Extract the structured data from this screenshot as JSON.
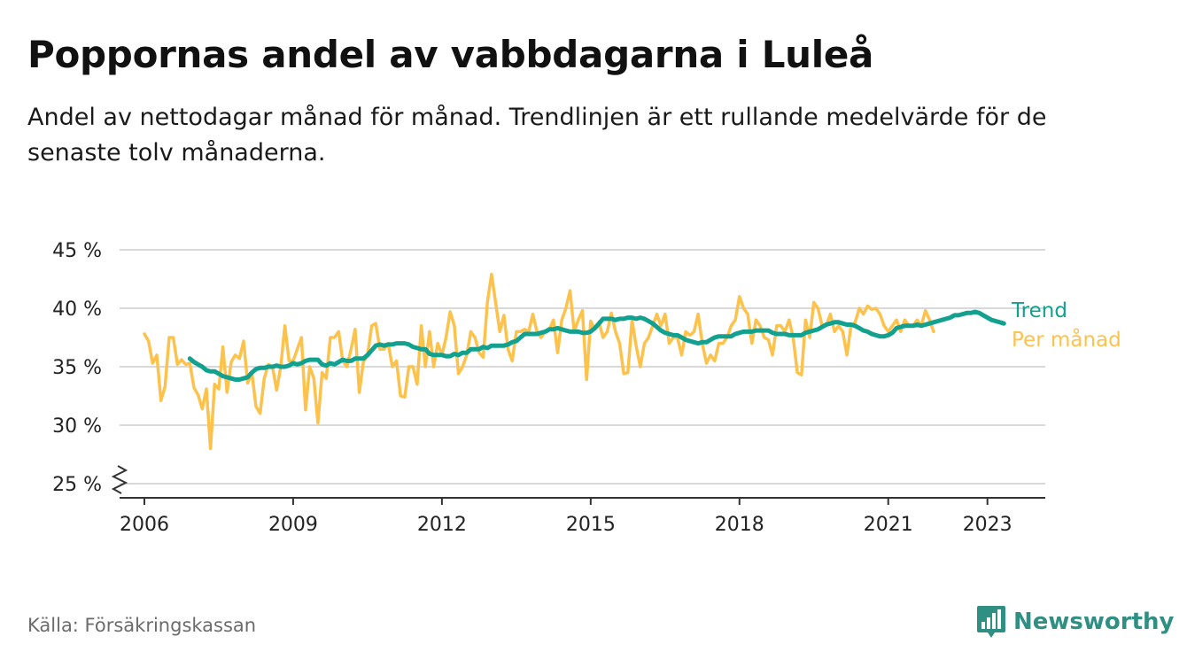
{
  "header": {
    "title": "Poppornas andel av vabbdagarna i Luleå",
    "subtitle": "Andel av nettodagar månad för månad. Trendlinjen är ett rullande medelvärde för de senaste tolv månaderna."
  },
  "footer": {
    "source": "Källa: Försäkringskassan",
    "brand": "Newsworthy",
    "brand_icon": "bar-chart-speech-bubble-icon"
  },
  "colors": {
    "trend": "#12a08f",
    "monthly": "#fcc24c",
    "grid": "#d9d9d9",
    "axis": "#333333",
    "brand": "#2f8f83"
  },
  "chart_data": {
    "type": "line",
    "x_axis": {
      "type": "time",
      "range": [
        "2005-07",
        "2024-03"
      ],
      "ticks": [
        "2006",
        "2009",
        "2012",
        "2015",
        "2018",
        "2021",
        "2023"
      ]
    },
    "y_axis": {
      "range": [
        25,
        45
      ],
      "ticks": [
        "25 %",
        "30 %",
        "35 %",
        "40 %",
        "45 %"
      ],
      "tick_values": [
        25,
        30,
        35,
        40,
        45
      ],
      "axis_break": true
    },
    "grid": true,
    "legend": "end-of-line labels",
    "series": [
      {
        "name": "Per månad",
        "start": "2006-01",
        "frequency": "monthly",
        "values": [
          37.8,
          37.2,
          35.3,
          36.0,
          32.1,
          33.3,
          37.5,
          37.5,
          35.2,
          35.6,
          35.2,
          35.3,
          33.2,
          32.6,
          31.4,
          33.1,
          28.0,
          33.5,
          33.1,
          36.7,
          32.8,
          35.4,
          36.0,
          35.7,
          37.2,
          33.6,
          34.5,
          31.6,
          31.0,
          34.0,
          35.2,
          35.0,
          33.0,
          35.0,
          38.5,
          35.5,
          35.5,
          36.5,
          37.5,
          31.3,
          35.0,
          34.0,
          30.2,
          34.5,
          34.0,
          37.5,
          37.5,
          38.0,
          35.5,
          35.0,
          36.5,
          38.2,
          32.8,
          35.4,
          36.0,
          38.5,
          38.7,
          36.5,
          36.5,
          37.0,
          35.0,
          35.5,
          32.5,
          32.4,
          35.0,
          35.0,
          33.5,
          38.5,
          35.0,
          38.0,
          35.0,
          37.0,
          36.0,
          37.5,
          39.7,
          38.5,
          34.4,
          35.0,
          36.0,
          38.0,
          37.5,
          36.2,
          35.8,
          40.5,
          42.9,
          40.5,
          38.0,
          39.4,
          36.5,
          35.5,
          38.0,
          38.0,
          38.2,
          38.0,
          39.5,
          38.0,
          37.5,
          38.0,
          38.2,
          39.0,
          36.2,
          39.0,
          40.0,
          41.5,
          38.0,
          39.0,
          39.8,
          33.9,
          38.9,
          38.2,
          38.8,
          37.5,
          38.0,
          39.6,
          38.0,
          37.0,
          34.4,
          34.5,
          39.0,
          36.8,
          35.0,
          37.0,
          37.5,
          38.5,
          39.5,
          38.5,
          39.5,
          37.0,
          37.5,
          37.5,
          36.0,
          38.0,
          37.7,
          38.0,
          39.5,
          37.0,
          35.3,
          36.0,
          35.5,
          37.0,
          37.0,
          37.5,
          38.5,
          39.0,
          41.0,
          40.0,
          39.5,
          37.0,
          39.0,
          38.5,
          37.5,
          37.3,
          36.0,
          38.5,
          38.5,
          38.0,
          39.0,
          37.5,
          34.5,
          34.3,
          39.0,
          37.5,
          40.5,
          40.0,
          38.5,
          38.5,
          39.5,
          38.0,
          38.5,
          38.0,
          36.0,
          38.5,
          38.8,
          40.0,
          39.5,
          40.2,
          39.9,
          40.0,
          39.5,
          38.5,
          38.0,
          38.5,
          39.0,
          38.0,
          39.0,
          38.5,
          38.5,
          39.0,
          38.5,
          39.8,
          39.0,
          38.0
        ],
        "color": "#fcc24c"
      },
      {
        "name": "Trend",
        "start": "2006-12",
        "frequency": "monthly",
        "values": [
          35.7,
          35.4,
          35.2,
          35.0,
          34.7,
          34.6,
          34.6,
          34.4,
          34.2,
          34.1,
          34.0,
          33.9,
          33.9,
          34.0,
          34.1,
          34.5,
          34.8,
          34.9,
          34.9,
          35.0,
          35.0,
          35.1,
          35.0,
          35.0,
          35.1,
          35.3,
          35.2,
          35.3,
          35.5,
          35.6,
          35.6,
          35.6,
          35.2,
          35.1,
          35.3,
          35.2,
          35.4,
          35.6,
          35.5,
          35.5,
          35.7,
          35.7,
          35.7,
          36.0,
          36.4,
          36.8,
          36.9,
          36.8,
          36.9,
          36.9,
          37.0,
          37.0,
          37.0,
          36.9,
          36.7,
          36.6,
          36.5,
          36.5,
          36.1,
          36.0,
          36.0,
          36.0,
          35.9,
          35.9,
          36.1,
          36.0,
          36.2,
          36.2,
          36.5,
          36.5,
          36.5,
          36.7,
          36.6,
          36.8,
          36.8,
          36.8,
          36.8,
          36.9,
          37.1,
          37.2,
          37.5,
          37.8,
          37.8,
          37.8,
          37.8,
          37.9,
          38.0,
          38.2,
          38.2,
          38.3,
          38.2,
          38.1,
          38.0,
          38.0,
          38.0,
          37.9,
          37.9,
          38.0,
          38.3,
          38.7,
          39.1,
          39.1,
          39.1,
          39.0,
          39.1,
          39.1,
          39.2,
          39.2,
          39.1,
          39.2,
          39.1,
          38.9,
          38.7,
          38.4,
          38.1,
          37.9,
          37.8,
          37.7,
          37.7,
          37.5,
          37.3,
          37.2,
          37.1,
          37.0,
          37.1,
          37.1,
          37.3,
          37.5,
          37.6,
          37.6,
          37.6,
          37.6,
          37.8,
          37.9,
          38.0,
          38.0,
          38.0,
          38.1,
          38.1,
          38.1,
          38.1,
          37.9,
          37.8,
          37.8,
          37.8,
          37.7,
          37.7,
          37.7,
          37.7,
          37.9,
          38.0,
          38.1,
          38.2,
          38.4,
          38.6,
          38.7,
          38.8,
          38.8,
          38.7,
          38.6,
          38.6,
          38.5,
          38.3,
          38.1,
          38.0,
          37.8,
          37.7,
          37.6,
          37.6,
          37.7,
          37.9,
          38.3,
          38.4,
          38.5,
          38.5,
          38.5,
          38.6,
          38.5,
          38.6,
          38.7,
          38.8,
          38.9,
          39.0,
          39.1,
          39.2,
          39.4,
          39.4,
          39.5,
          39.6,
          39.6,
          39.7,
          39.6,
          39.4,
          39.2,
          39.0,
          38.9,
          38.8,
          38.7
        ],
        "color": "#12a08f"
      }
    ]
  }
}
